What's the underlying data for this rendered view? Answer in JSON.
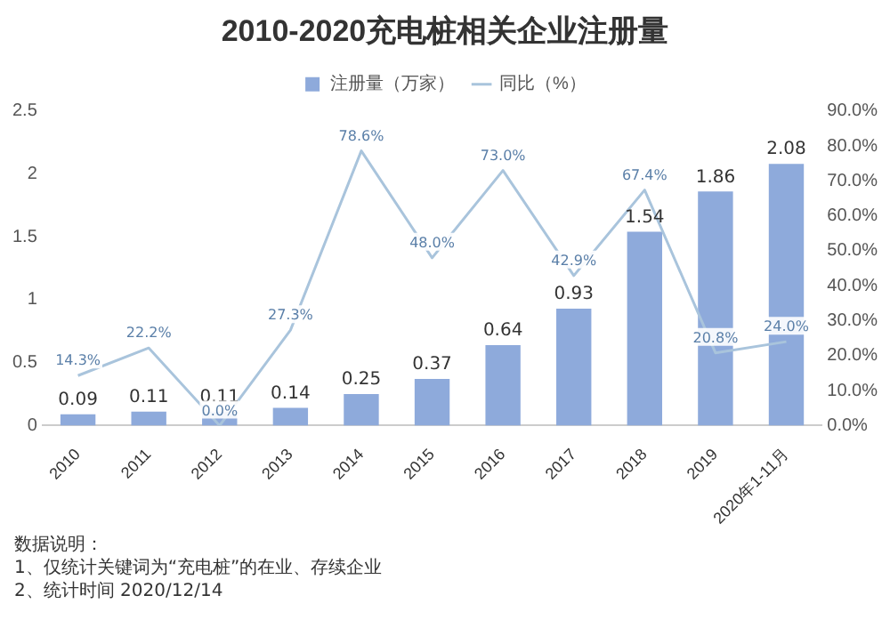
{
  "chart_data": {
    "type": "bar",
    "title": "2010-2020充电桩相关企业注册量",
    "categories": [
      "2010",
      "2011",
      "2012",
      "2013",
      "2014",
      "2015",
      "2016",
      "2017",
      "2018",
      "2019",
      "2020年1-11月"
    ],
    "series": [
      {
        "name": "注册量（万家）",
        "color": "#8eaadb",
        "values": [
          0.09,
          0.11,
          0.11,
          0.14,
          0.25,
          0.37,
          0.64,
          0.93,
          1.54,
          1.86,
          2.08
        ],
        "value_labels": [
          "0.09",
          "0.11",
          "0.11",
          "0.14",
          "0.25",
          "0.37",
          "0.64",
          "0.93",
          "1.54",
          "1.86",
          "2.08"
        ]
      },
      {
        "name": "同比（%）",
        "type": "line",
        "axis": "y2",
        "color": "#a9c4dc",
        "values": [
          14.3,
          22.2,
          0.0,
          27.3,
          78.6,
          48.0,
          73.0,
          42.9,
          67.4,
          20.8,
          24.0
        ],
        "value_labels": [
          "14.3%",
          "22.2%",
          "0.0%",
          "27.3%",
          "78.6%",
          "48.0%",
          "73.0%",
          "42.9%",
          "67.4%",
          "20.8%",
          "24.0%"
        ]
      }
    ],
    "ylim": [
      0,
      2.5
    ],
    "yticks": [
      0,
      0.5,
      1,
      1.5,
      2,
      2.5
    ],
    "y2lim": [
      0,
      90
    ],
    "y2ticks": [
      {
        "value": 0,
        "label": "0.0%"
      },
      {
        "value": 10,
        "label": "10.0%"
      },
      {
        "value": 20,
        "label": "20.0%"
      },
      {
        "value": 30,
        "label": "30.0%"
      },
      {
        "value": 40,
        "label": "40.0%"
      },
      {
        "value": 50,
        "label": "50.0%"
      },
      {
        "value": 60,
        "label": "60.0%"
      },
      {
        "value": 70,
        "label": "70.0%"
      },
      {
        "value": 80,
        "label": "80.0%"
      },
      {
        "value": 90,
        "label": "90.0%"
      }
    ],
    "legend": "top",
    "marker": "none",
    "grid": false,
    "annotations": [
      "数据说明：",
      "1、仅统计关键词为“充电桩”的在业、存续企业",
      "2、统计时间 2020/12/14"
    ]
  }
}
